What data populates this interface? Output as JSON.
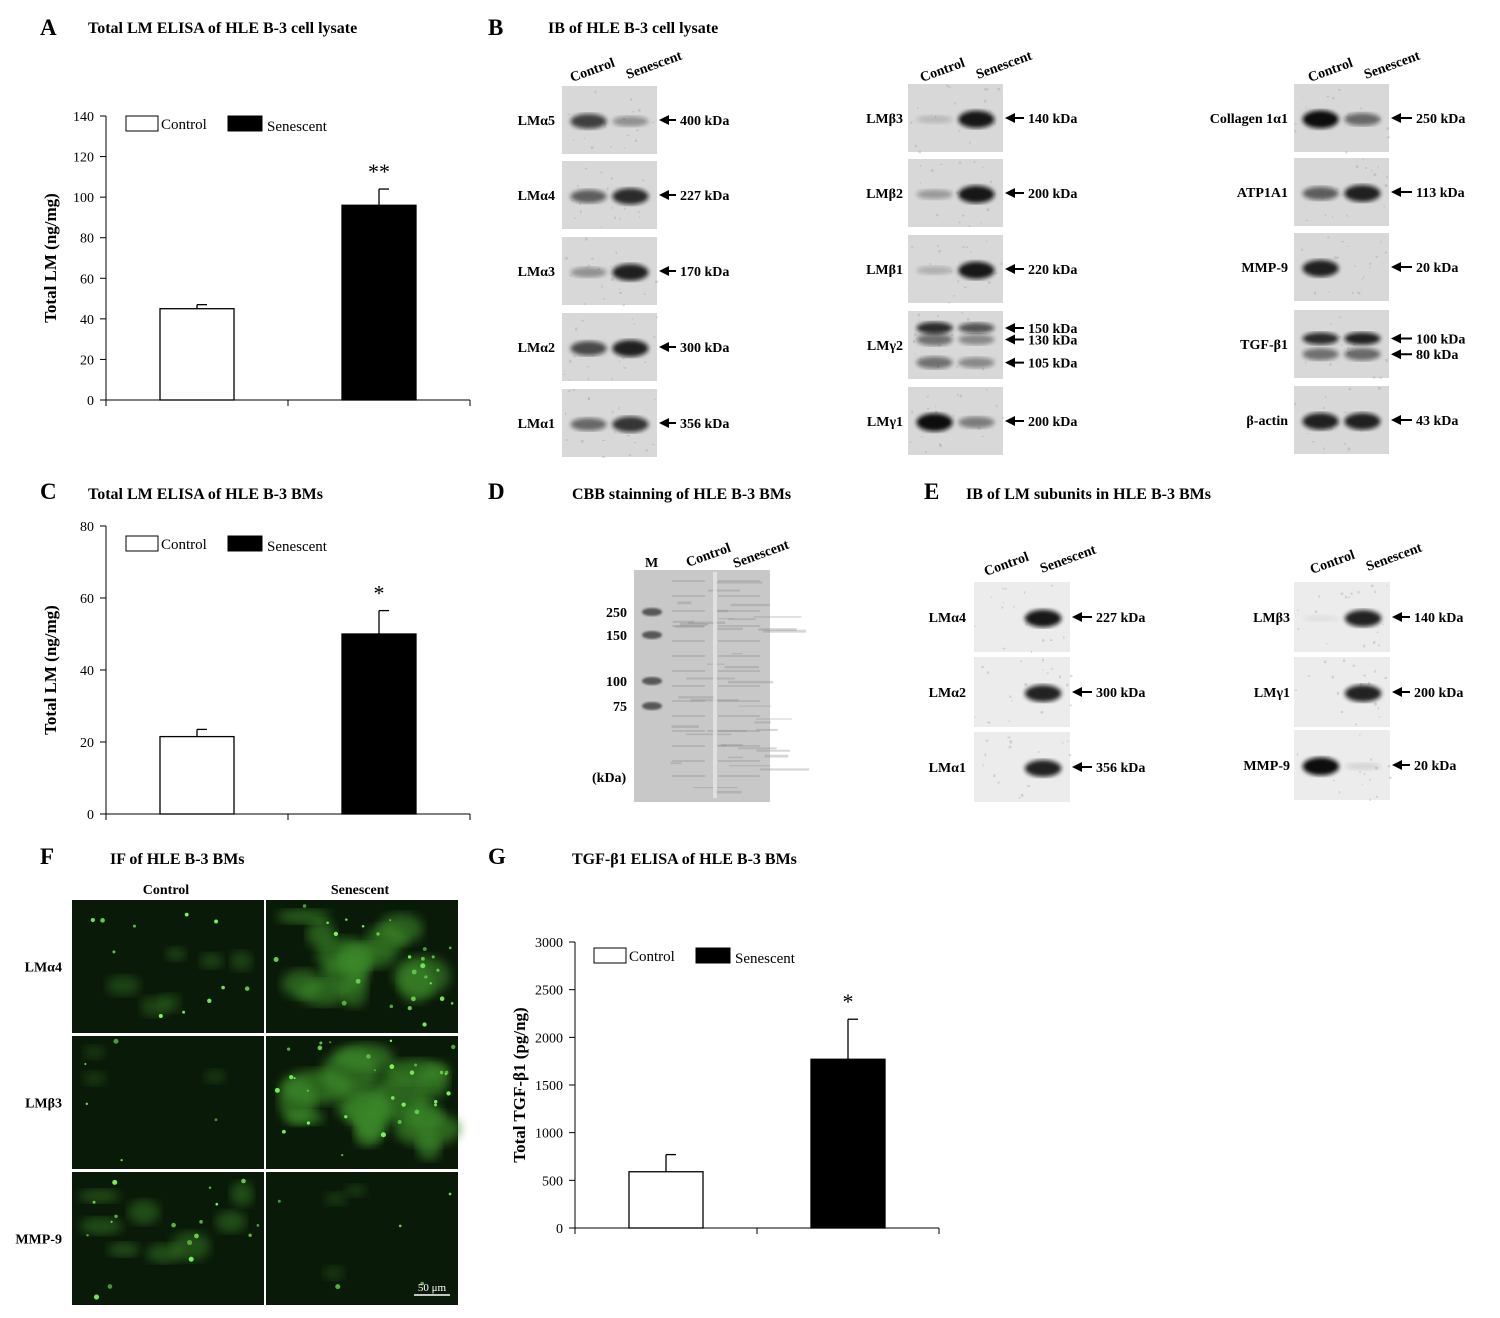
{
  "panels": {
    "A": {
      "letter": "A",
      "title": "Total LM ELISA of HLE B-3 cell lysate"
    },
    "B": {
      "letter": "B",
      "title": "IB of HLE  B-3 cell lysate"
    },
    "C": {
      "letter": "C",
      "title": "Total LM ELISA of HLE B-3 BMs"
    },
    "D": {
      "letter": "D",
      "title": "CBB stainning of HLE B-3 BMs"
    },
    "E": {
      "letter": "E",
      "title": "IB of LM subunits in HLE  B-3 BMs"
    },
    "F": {
      "letter": "F",
      "title": "IF of  HLE B-3 BMs"
    },
    "G": {
      "letter": "G",
      "title": "TGF-β1 ELISA of HLE B-3 BMs"
    }
  },
  "lane_labels": {
    "control": "Control",
    "senescent": "Senescent"
  },
  "blots_B": [
    {
      "label": "LMα5",
      "kda": [
        "400 kDa"
      ],
      "intensity": [
        0.75,
        0.35
      ]
    },
    {
      "label": "LMα4",
      "kda": [
        "227 kDa"
      ],
      "intensity": [
        0.6,
        0.85
      ]
    },
    {
      "label": "LMα3",
      "kda": [
        "170 kDa"
      ],
      "intensity": [
        0.35,
        0.9
      ]
    },
    {
      "label": "LMα2",
      "kda": [
        "300 kDa"
      ],
      "intensity": [
        0.7,
        0.9
      ]
    },
    {
      "label": "LMα1",
      "kda": [
        "356 kDa"
      ],
      "intensity": [
        0.55,
        0.8
      ]
    },
    {
      "label": "LMβ3",
      "kda": [
        "140 kDa"
      ],
      "intensity": [
        0.15,
        0.95
      ]
    },
    {
      "label": "LMβ2",
      "kda": [
        "200 kDa"
      ],
      "intensity": [
        0.3,
        0.95
      ]
    },
    {
      "label": "LMβ1",
      "kda": [
        "220 kDa"
      ],
      "intensity": [
        0.2,
        0.95
      ]
    },
    {
      "label": "LMγ2",
      "kda": [
        "150 kDa",
        "130 kDa",
        "105 kDa"
      ],
      "intensity": [
        0.85,
        0.65
      ]
    },
    {
      "label": "LMγ1",
      "kda": [
        "200 kDa"
      ],
      "intensity": [
        1.0,
        0.45
      ]
    },
    {
      "label": "Collagen 1α1",
      "kda": [
        "250 kDa"
      ],
      "intensity": [
        1.0,
        0.55
      ]
    },
    {
      "label": "ATP1A1",
      "kda": [
        "113 kDa"
      ],
      "intensity": [
        0.6,
        0.9
      ]
    },
    {
      "label": "MMP-9",
      "kda": [
        "20 kDa"
      ],
      "intensity": [
        0.9,
        0.0
      ]
    },
    {
      "label": "TGF-β1",
      "kda": [
        "100 kDa",
        "80 kDa"
      ],
      "intensity": [
        0.85,
        0.9
      ]
    },
    {
      "label": "β-actin",
      "kda": [
        "43 kDa"
      ],
      "intensity": [
        0.9,
        0.9
      ]
    }
  ],
  "blots_E": [
    {
      "label": "LMα4",
      "kda": [
        "227 kDa"
      ],
      "intensity": [
        0.0,
        0.95
      ]
    },
    {
      "label": "LMα2",
      "kda": [
        "300 kDa"
      ],
      "intensity": [
        0.0,
        0.9
      ]
    },
    {
      "label": "LMα1",
      "kda": [
        "356 kDa"
      ],
      "intensity": [
        0.0,
        0.9
      ]
    },
    {
      "label": "LMβ3",
      "kda": [
        "140 kDa"
      ],
      "intensity": [
        0.05,
        0.9
      ]
    },
    {
      "label": "LMγ1",
      "kda": [
        "200 kDa"
      ],
      "intensity": [
        0.0,
        0.9
      ]
    },
    {
      "label": "MMP-9",
      "kda": [
        "20 kDa"
      ],
      "intensity": [
        1.0,
        0.1
      ]
    }
  ],
  "gel_D": {
    "marker": "M",
    "markers": [
      "250",
      "150",
      "100",
      "75"
    ],
    "unit": "(kDa)"
  },
  "if_F": {
    "rows": [
      "LMα4",
      "LMβ3",
      "MMP-9"
    ],
    "scale_bar": "50 μm",
    "signal": [
      [
        0.25,
        0.75
      ],
      [
        0.05,
        0.9
      ],
      [
        0.45,
        0.05
      ]
    ]
  },
  "chart_data": [
    {
      "panel": "A",
      "type": "bar",
      "categories": [
        "Control",
        "Senescent"
      ],
      "values": [
        45,
        96
      ],
      "errors": [
        2,
        8
      ],
      "ylim": [
        0,
        140
      ],
      "yticks": [
        0,
        20,
        40,
        60,
        80,
        100,
        120,
        140
      ],
      "ylabel": "Total LM (ng/mg)",
      "significance": [
        "",
        "**"
      ],
      "legend": [
        "Control",
        "Senescent"
      ],
      "colors": [
        "#ffffff",
        "#000000"
      ]
    },
    {
      "panel": "C",
      "type": "bar",
      "categories": [
        "Control",
        "Senescent"
      ],
      "values": [
        21.5,
        50
      ],
      "errors": [
        2,
        6.5
      ],
      "ylim": [
        0,
        80
      ],
      "yticks": [
        0,
        20,
        40,
        60,
        80
      ],
      "ylabel": "Total LM (ng/mg)",
      "significance": [
        "",
        "*"
      ],
      "legend": [
        "Control",
        "Senescent"
      ],
      "colors": [
        "#ffffff",
        "#000000"
      ]
    },
    {
      "panel": "G",
      "type": "bar",
      "categories": [
        "Control",
        "Senescent"
      ],
      "values": [
        590,
        1770
      ],
      "errors": [
        180,
        420
      ],
      "ylim": [
        0,
        3000
      ],
      "yticks": [
        0,
        500,
        1000,
        1500,
        2000,
        2500,
        3000
      ],
      "ylabel": "Total TGF-β1 (pg/ng)",
      "significance": [
        "",
        "*"
      ],
      "legend": [
        "Control",
        "Senescent"
      ],
      "colors": [
        "#ffffff",
        "#000000"
      ]
    }
  ]
}
